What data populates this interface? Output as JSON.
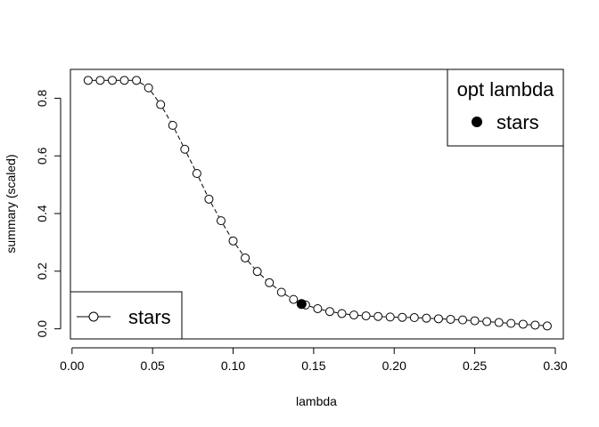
{
  "chart_data": {
    "type": "scatter",
    "title": "",
    "xlabel": "lambda",
    "ylabel": "summary (scaled)",
    "xlim": [
      -0.001,
      0.305
    ],
    "ylim": [
      -0.035,
      0.9
    ],
    "grid": false,
    "x_ticks": [
      0.0,
      0.05,
      0.1,
      0.15,
      0.2,
      0.25,
      0.3
    ],
    "x_tick_labels": [
      "0.00",
      "0.05",
      "0.10",
      "0.15",
      "0.20",
      "0.25",
      "0.30"
    ],
    "y_ticks": [
      0.0,
      0.2,
      0.4,
      0.6,
      0.8
    ],
    "y_tick_labels": [
      "0.0",
      "0.2",
      "0.4",
      "0.6",
      "0.8"
    ],
    "series": [
      {
        "name": "stars",
        "marker": "open-circle",
        "line": "dashed",
        "color": "#000000",
        "x": [
          0.01,
          0.0175,
          0.025,
          0.0325,
          0.04,
          0.0475,
          0.055,
          0.0625,
          0.07,
          0.0775,
          0.085,
          0.0925,
          0.1,
          0.1075,
          0.115,
          0.1225,
          0.13,
          0.1375,
          0.145,
          0.1525,
          0.16,
          0.1675,
          0.175,
          0.1825,
          0.19,
          0.1975,
          0.205,
          0.2125,
          0.22,
          0.2275,
          0.235,
          0.2425,
          0.25,
          0.2575,
          0.265,
          0.2725,
          0.28,
          0.2875,
          0.295
        ],
        "y": [
          0.862,
          0.862,
          0.862,
          0.862,
          0.862,
          0.836,
          0.778,
          0.706,
          0.623,
          0.539,
          0.45,
          0.375,
          0.305,
          0.246,
          0.199,
          0.16,
          0.127,
          0.102,
          0.083,
          0.07,
          0.06,
          0.053,
          0.048,
          0.045,
          0.043,
          0.041,
          0.04,
          0.039,
          0.037,
          0.035,
          0.033,
          0.031,
          0.028,
          0.025,
          0.022,
          0.019,
          0.016,
          0.013,
          0.01
        ]
      }
    ],
    "optimum": {
      "name": "stars",
      "x": 0.1425,
      "y": 0.086,
      "marker": "filled-circle"
    },
    "legends": [
      {
        "placement": "bottom-left",
        "entries": [
          {
            "label": "stars",
            "symbol": "open-circle-with-line"
          }
        ]
      },
      {
        "placement": "top-right",
        "title": "opt lambda",
        "entries": [
          {
            "label": "stars",
            "symbol": "filled-circle"
          }
        ]
      }
    ]
  }
}
